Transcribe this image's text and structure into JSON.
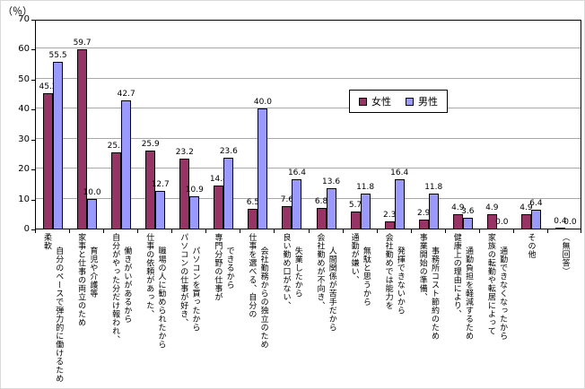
{
  "chart_data": {
    "type": "bar",
    "title": "",
    "y_unit": "（％）",
    "ylim": [
      0,
      70
    ],
    "y_tick_step": 10,
    "y_ticks": [
      0,
      10,
      20,
      30,
      40,
      50,
      60,
      70
    ],
    "grid": true,
    "legend_position": "inside-top-center",
    "bar_group": "grouped-pairs",
    "series": [
      {
        "name": "女性",
        "color": "#993366",
        "values": [
          45.2,
          59.7,
          25.3,
          25.9,
          23.2,
          14.4,
          6.5,
          7.6,
          6.8,
          5.7,
          2.3,
          2.9,
          4.9,
          4.9,
          4.9,
          0.4
        ]
      },
      {
        "name": "男性",
        "color": "#9999FF",
        "values": [
          55.5,
          10.0,
          42.7,
          12.7,
          10.9,
          23.6,
          40.0,
          16.4,
          13.6,
          11.8,
          16.4,
          11.8,
          3.6,
          0.0,
          6.4,
          0.0
        ]
      }
    ],
    "categories": [
      {
        "lines": [
          "柔軟",
          "自分のペースで弾力的に働けるため"
        ]
      },
      {
        "lines": [
          "家事と仕事の両立のため",
          "育児や介護等"
        ]
      },
      {
        "lines": [
          "自分がやった分だけ報われ、",
          "働きがいがあるから"
        ]
      },
      {
        "lines": [
          "仕事の依頼があった、",
          "職場の人に勧められたから"
        ]
      },
      {
        "lines": [
          "パソコンの仕事が好き、",
          "パソコンを買ったから"
        ]
      },
      {
        "lines": [
          "専門分野の仕事が",
          "できるから"
        ]
      },
      {
        "lines": [
          "仕事を選べる、自分の",
          "会社勤務からの独立のため"
        ]
      },
      {
        "lines": [
          "良い勤め口がない、",
          "失業したから"
        ]
      },
      {
        "lines": [
          "会社勤めが不向き、",
          "人間関係が苦手だから"
        ]
      },
      {
        "lines": [
          "通勤が嫌い、",
          "無駄と思うから"
        ]
      },
      {
        "lines": [
          "会社勤めでは能力を",
          "発揮できないから"
        ]
      },
      {
        "lines": [
          "事業開始の準備、",
          "事務所コスト節約のため"
        ]
      },
      {
        "lines": [
          "健康上の理由により、",
          "通勤負担を軽減するため"
        ]
      },
      {
        "lines": [
          "家族の転勤や転居によって",
          "通勤できなくなったから"
        ]
      },
      {
        "lines": [
          "その他"
        ]
      },
      {
        "lines": [
          "（無回答）"
        ]
      }
    ]
  }
}
